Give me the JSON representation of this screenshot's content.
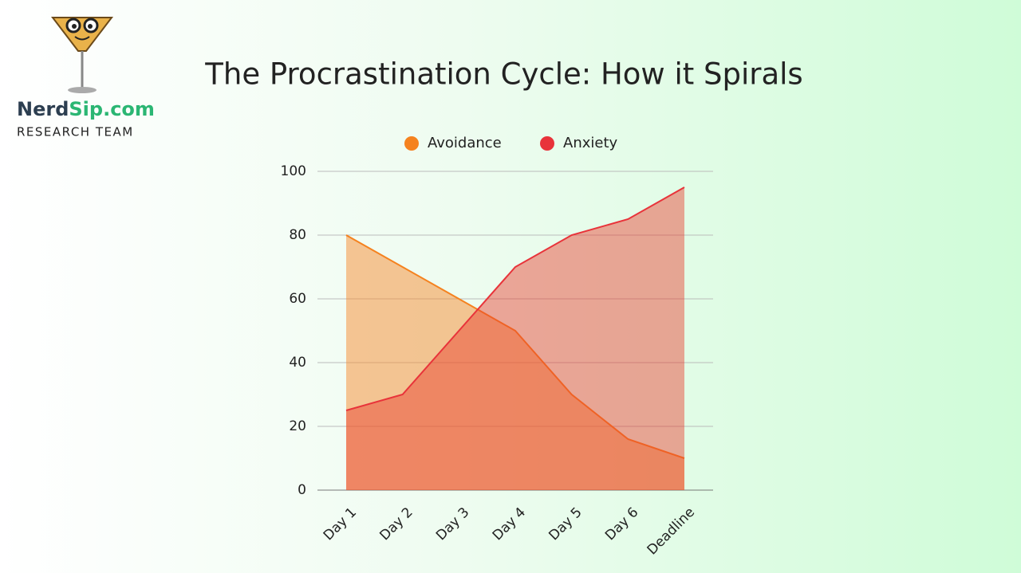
{
  "brand": {
    "name": [
      "Nerd",
      "Sip.com"
    ],
    "team": "RESEARCH TEAM"
  },
  "chart_data": {
    "type": "area",
    "title": "The Procrastination Cycle: How it Spirals",
    "categories": [
      "Day 1",
      "Day 2",
      "Day 3",
      "Day 4",
      "Day 5",
      "Day 6",
      "Deadline"
    ],
    "series": [
      {
        "name": "Avoidance",
        "color": "#f5821f",
        "values": [
          80,
          70,
          60,
          50,
          30,
          16,
          10
        ]
      },
      {
        "name": "Anxiety",
        "color": "#e8333a",
        "values": [
          25,
          30,
          50,
          70,
          80,
          85,
          95
        ]
      }
    ],
    "ylim": [
      0,
      100
    ],
    "yticks": [
      0,
      20,
      40,
      60,
      80,
      100
    ],
    "grid": true,
    "legend": "top"
  }
}
